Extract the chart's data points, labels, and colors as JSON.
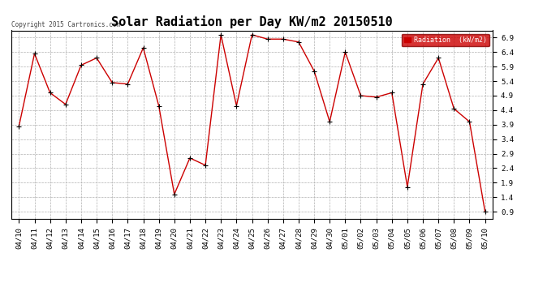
{
  "title": "Solar Radiation per Day KW/m2 20150510",
  "copyright": "Copyright 2015 Cartronics.com",
  "legend_label": "Radiation  (kW/m2)",
  "dates": [
    "04/10",
    "04/11",
    "04/12",
    "04/13",
    "04/14",
    "04/15",
    "04/16",
    "04/17",
    "04/18",
    "04/19",
    "04/20",
    "04/21",
    "04/22",
    "04/23",
    "04/24",
    "04/25",
    "04/26",
    "04/27",
    "04/28",
    "04/29",
    "04/30",
    "05/01",
    "05/02",
    "05/03",
    "05/04",
    "05/05",
    "05/06",
    "05/07",
    "05/08",
    "05/09",
    "05/10"
  ],
  "values": [
    3.85,
    6.35,
    5.0,
    4.6,
    5.95,
    6.2,
    5.35,
    5.3,
    6.55,
    4.55,
    1.5,
    2.75,
    2.5,
    7.0,
    4.55,
    7.0,
    6.85,
    6.85,
    6.75,
    5.75,
    4.0,
    6.4,
    4.9,
    4.85,
    5.0,
    1.75,
    5.3,
    6.2,
    4.45,
    4.0,
    0.9
  ],
  "line_color": "#cc0000",
  "marker_color": "#000000",
  "bg_color": "#ffffff",
  "grid_color": "#b0b0b0",
  "ylim": [
    0.65,
    7.15
  ],
  "yticks": [
    0.9,
    1.4,
    1.9,
    2.4,
    2.9,
    3.4,
    3.9,
    4.4,
    4.9,
    5.4,
    5.9,
    6.4,
    6.9
  ],
  "title_fontsize": 11,
  "tick_fontsize": 6.5,
  "legend_bg": "#cc0000",
  "legend_text_color": "#ffffff"
}
